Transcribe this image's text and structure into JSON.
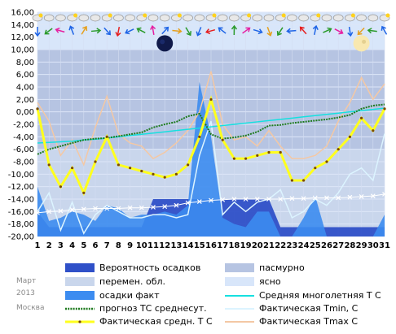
{
  "meta": {
    "month": "Март",
    "year": "2013",
    "city": "Москва"
  },
  "colors": {
    "plot_bg": "#c8d4ee",
    "overcast": "#b6c4e2",
    "variable": "#c9d6ec",
    "clear": "#d8e6fa",
    "precip_prob": "#2f50c8",
    "precip_fact": "#3c8cf0",
    "avg_normal": "#16e0e0",
    "forecast": "#1e7a1e",
    "avg_fact": "#ffff1e",
    "tmin": "#dcf4ff",
    "tmax": "#f4c8a4"
  },
  "legend": [
    {
      "label": "Вероятность осадков",
      "kind": "precip_prob"
    },
    {
      "label": "пасмурно",
      "kind": "overcast"
    },
    {
      "label": "перемен. обл.",
      "kind": "variable"
    },
    {
      "label": "ясно",
      "kind": "clear"
    },
    {
      "label": "осадки факт",
      "kind": "precip_fact"
    },
    {
      "label": "Средняя многолетняя Т С",
      "kind": "avg_normal"
    },
    {
      "label": "прогноз ТС среднесут.",
      "kind": "forecast"
    },
    {
      "label": "Фактическая Tmin, С",
      "kind": "tmin"
    },
    {
      "label": "Фактическая средн. Т С",
      "kind": "avg_fact"
    },
    {
      "label": "Фактическая Tmax С",
      "kind": "tmax"
    }
  ],
  "icons": {
    "moon": [
      "new-moon-icon",
      "full-moon-icon"
    ],
    "weather": "weather-condition-icon",
    "wind": "wind-direction-arrow-icon"
  },
  "chart_data": {
    "type": "line",
    "x": [
      1,
      2,
      3,
      4,
      5,
      6,
      7,
      8,
      9,
      10,
      11,
      12,
      13,
      14,
      15,
      16,
      17,
      18,
      19,
      20,
      21,
      22,
      23,
      24,
      25,
      26,
      27,
      28,
      29,
      30,
      31
    ],
    "ylim": [
      -20,
      16
    ],
    "yticks": [
      "16,00",
      "14,00",
      "12,00",
      "10,00",
      "8,00",
      "6,00",
      "4,00",
      "2,00",
      "0,00",
      "-2,00",
      "-4,00",
      "-6,00",
      "-8,00",
      "-10,00",
      "-12,00",
      "-14,00",
      "-16,00",
      "-18,00",
      "-20,00"
    ],
    "grid": true,
    "legend_position": "bottom",
    "moon_phases": [
      {
        "day": 12,
        "phase": "new"
      },
      {
        "day": 29,
        "phase": "full"
      }
    ],
    "series": [
      {
        "name": "Средняя многолетняя Т С",
        "values": [
          -5.0,
          -4.9,
          -4.8,
          -4.7,
          -4.5,
          -4.4,
          -4.2,
          -4.0,
          -3.8,
          -3.6,
          -3.4,
          -3.2,
          -3.0,
          -2.8,
          -2.6,
          -2.4,
          -2.2,
          -2.0,
          -1.8,
          -1.6,
          -1.4,
          -1.2,
          -1.0,
          -0.8,
          -0.6,
          -0.4,
          -0.2,
          0.0,
          0.2,
          0.4,
          0.6
        ]
      },
      {
        "name": "прогноз ТС среднесут.",
        "values": [
          -6.8,
          -6.0,
          -5.5,
          -5.0,
          -4.5,
          -4.3,
          -4.2,
          -3.9,
          -3.6,
          -3.3,
          -2.5,
          -2.0,
          -1.6,
          -0.7,
          -0.3,
          -3.6,
          -4.3,
          -4.1,
          -3.8,
          -3.2,
          -2.2,
          -2.1,
          -1.8,
          -1.6,
          -1.4,
          -1.2,
          -0.9,
          -0.5,
          0.5,
          1.0,
          1.2
        ]
      },
      {
        "name": "Фактическая средн. Т С",
        "values": [
          0.5,
          -8.5,
          -12.0,
          -9.0,
          -13.0,
          -8.0,
          -4.0,
          -8.5,
          -9.0,
          -9.5,
          -10.0,
          -10.5,
          -10.0,
          -8.5,
          -4.0,
          2.0,
          -4.5,
          -7.5,
          -7.5,
          -7.0,
          -6.5,
          -6.5,
          -11.0,
          -11.0,
          -9.0,
          -8.0,
          -6.0,
          -4.0,
          -1.0,
          -3.0,
          0.5
        ]
      },
      {
        "name": "Фактическая Tmin, С",
        "values": [
          -16.0,
          -13.0,
          -19.0,
          -14.5,
          -19.5,
          -16.5,
          -15.0,
          -16.0,
          -17.0,
          -17.0,
          -16.5,
          -16.5,
          -17.0,
          -16.5,
          -7.0,
          -1.5,
          -16.5,
          -14.5,
          -16.0,
          -14.5,
          -14.0,
          -12.5,
          -17.0,
          -16.0,
          -14.0,
          -15.0,
          -13.0,
          -10.0,
          -9.0,
          -11.0,
          -3.5
        ]
      },
      {
        "name": "Фактическая Tmax С",
        "values": [
          1.5,
          -1.5,
          -7.0,
          -4.5,
          -8.5,
          -2.5,
          2.5,
          -3.5,
          -5.0,
          -5.5,
          -7.5,
          -6.5,
          -5.0,
          -3.0,
          0.0,
          6.5,
          -2.0,
          -4.5,
          -4.0,
          -5.5,
          -3.0,
          -5.5,
          -7.5,
          -7.5,
          -7.0,
          -5.5,
          -1.5,
          1.5,
          5.5,
          2.0,
          4.5
        ]
      },
      {
        "name": "осадки факт",
        "values": [
          -12,
          -17.5,
          -17,
          -16,
          -16.5,
          -17.5,
          -15,
          -15.5,
          -17,
          -16.5,
          -16.5,
          -16,
          -16.5,
          -15,
          4.8,
          -4,
          -17,
          -18,
          -18.5,
          -16,
          -16,
          -20,
          -20,
          -17,
          -13.5,
          -20,
          -20,
          -20,
          -20,
          -20,
          -16.5
        ]
      },
      {
        "name": "Вероятность осадков",
        "values": [
          -16,
          -18.5,
          -18.5,
          -18.5,
          -18.5,
          -18.5,
          -18.5,
          -18.5,
          -18.5,
          -18.5,
          -14,
          -14,
          -14,
          -14,
          -14,
          -14,
          -14,
          -14,
          -14,
          -14,
          -14,
          -18.5,
          -18.5,
          -18.5,
          -18.5,
          -18.5,
          -18.5,
          -18.5,
          -18.5,
          -18.5,
          -18.5
        ]
      },
      {
        "name": "Фактическая Tmin marker",
        "values": [
          -16.2,
          -16.0,
          -15.9,
          -15.7,
          -15.6,
          -15.5,
          -15.5,
          -15.5,
          -15.4,
          -15.4,
          -15.3,
          -15.2,
          -15.0,
          -14.6,
          -14.4,
          -14.2,
          -14.1,
          -14.0,
          -14.0,
          -14.0,
          -14.0,
          -14.0,
          -13.9,
          -13.9,
          -13.8,
          -13.8,
          -13.8,
          -13.7,
          -13.6,
          -13.5,
          -13.2
        ]
      }
    ]
  }
}
